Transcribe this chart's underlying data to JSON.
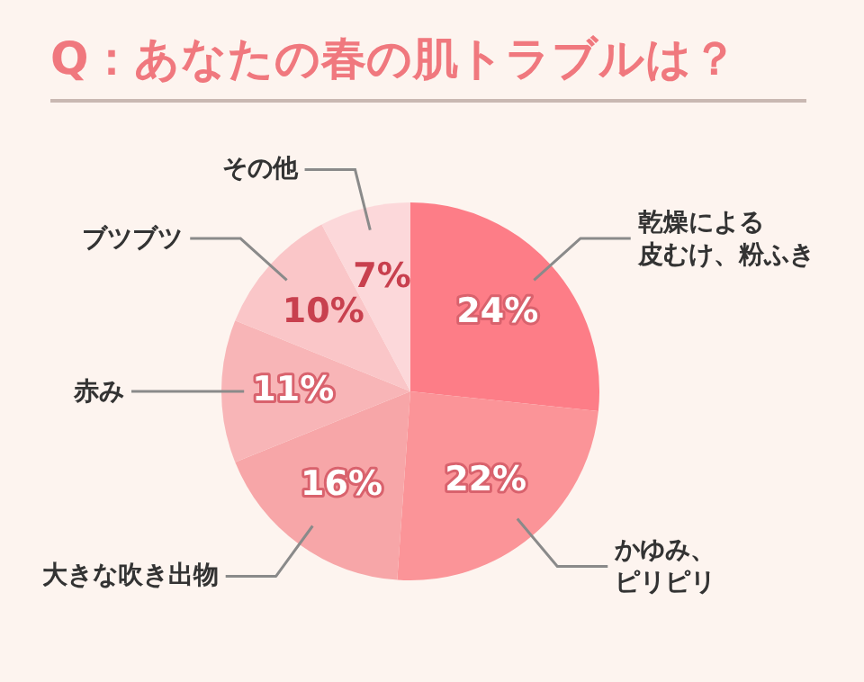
{
  "chart_data": {
    "type": "pie",
    "title": "Q：あなたの春の肌トラブルは？",
    "categories": [
      "乾燥による皮むけ、粉ふき",
      "かゆみ、ピリピリ",
      "大きな吹き出物",
      "赤み",
      "ブツブツ",
      "その他"
    ],
    "values": [
      24,
      22,
      16,
      11,
      10,
      7
    ],
    "value_labels": [
      "24%",
      "22%",
      "16%",
      "11%",
      "10%",
      "7%"
    ],
    "colors": [
      "#fd7d87",
      "#fb9498",
      "#f7a6a8",
      "#f8b5b7",
      "#fac6c8",
      "#fcd8da"
    ],
    "legend": false
  }
}
